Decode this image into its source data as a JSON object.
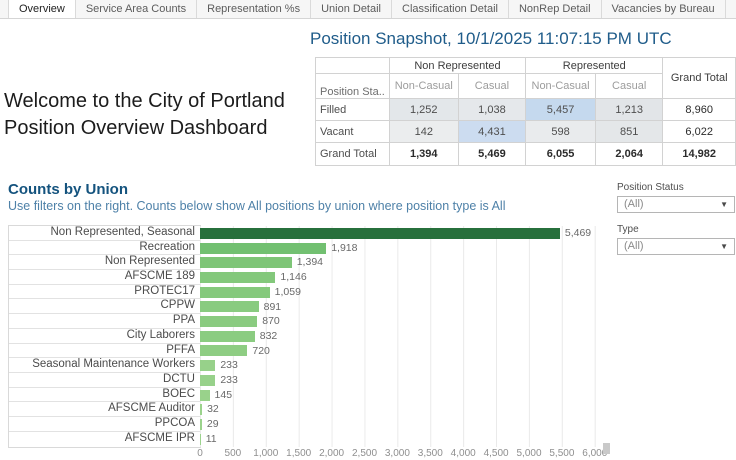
{
  "tabs": {
    "items": [
      {
        "label": "Overview",
        "active": true
      },
      {
        "label": "Service Area Counts",
        "active": false
      },
      {
        "label": "Representation %s",
        "active": false
      },
      {
        "label": "Union Detail",
        "active": false
      },
      {
        "label": "Classification Detail",
        "active": false
      },
      {
        "label": "NonRep Detail",
        "active": false
      },
      {
        "label": "Vacancies by Bureau",
        "active": false
      }
    ]
  },
  "welcome": {
    "line1": "Welcome to the City of Portland",
    "line2": "Position Overview Dashboard"
  },
  "snapshot": {
    "title": "Position Snapshot, 10/1/2025 11:07:15 PM UTC",
    "table": {
      "col_groups": [
        "Non Represented",
        "Represented"
      ],
      "sub_headers": [
        "Non-Casual",
        "Casual",
        "Non-Casual",
        "Casual"
      ],
      "row_field_label": "Position Sta..",
      "grand_total_label": "Grand Total",
      "rows": [
        {
          "label": "Filled",
          "bold": false,
          "cells": [
            {
              "v": "1,252",
              "bg": "#e3e7ea"
            },
            {
              "v": "1,038",
              "bg": "#e5e8eb"
            },
            {
              "v": "5,457",
              "bg": "#c5d9ee"
            },
            {
              "v": "1,213",
              "bg": "#e2e5e8"
            }
          ],
          "total": "8,960"
        },
        {
          "label": "Vacant",
          "bold": false,
          "cells": [
            {
              "v": "142",
              "bg": "#ebedee"
            },
            {
              "v": "4,431",
              "bg": "#ccdcf0"
            },
            {
              "v": "598",
              "bg": "#e9ebed"
            },
            {
              "v": "851",
              "bg": "#e4e7e9"
            }
          ],
          "total": "6,022"
        },
        {
          "label": "Grand Total",
          "bold": true,
          "cells": [
            {
              "v": "1,394",
              "bg": "#ffffff"
            },
            {
              "v": "5,469",
              "bg": "#ffffff"
            },
            {
              "v": "6,055",
              "bg": "#ffffff"
            },
            {
              "v": "2,064",
              "bg": "#ffffff"
            }
          ],
          "total": "14,982"
        }
      ]
    }
  },
  "counts_by_union": {
    "heading": "Counts by Union",
    "subtitle": "Use filters on the right. Counts below show All positions by union where position type is All"
  },
  "filters": [
    {
      "label": "Position Status",
      "value": "(All)",
      "caret": "▼"
    },
    {
      "label": "Type",
      "value": "(All)",
      "caret": "▼"
    }
  ],
  "chart_data": {
    "type": "bar",
    "orientation": "horizontal",
    "title": "Counts by Union",
    "xlabel": "",
    "ylabel": "",
    "xlim": [
      0,
      6076
    ],
    "grid": true,
    "categories": [
      "Non Represented, Seasonal",
      "Recreation",
      "Non Represented",
      "AFSCME 189",
      "PROTEC17",
      "CPPW",
      "PPA",
      "City Laborers",
      "PFFA",
      "Seasonal Maintenance Workers",
      "DCTU",
      "BOEC",
      "AFSCME Auditor",
      "PPCOA",
      "AFSCME IPR"
    ],
    "values": [
      5469,
      1918,
      1394,
      1146,
      1059,
      891,
      870,
      832,
      720,
      233,
      233,
      145,
      32,
      29,
      11
    ],
    "value_labels": [
      "5,469",
      "1,918",
      "1,394",
      "1,146",
      "1,059",
      "891",
      "870",
      "832",
      "720",
      "233",
      "233",
      "145",
      "32",
      "29",
      "11"
    ],
    "bar_colors": [
      "#27703c",
      "#72c071",
      "#7ec577",
      "#83c87b",
      "#85c97c",
      "#89cb80",
      "#8acb80",
      "#8bcc81",
      "#8ecd83",
      "#97d18a",
      "#97d18a",
      "#99d28b",
      "#9bd38c",
      "#9bd38c",
      "#9cd38d"
    ],
    "x_ticks": [
      0,
      500,
      1000,
      1500,
      2000,
      2500,
      3000,
      3500,
      4000,
      4500,
      5000,
      5500,
      6000
    ],
    "x_tick_labels": [
      "0",
      "500",
      "1,000",
      "1,500",
      "2,000",
      "2,500",
      "3,000",
      "3,500",
      "4,000",
      "4,500",
      "5,000",
      "5,500",
      "6,000"
    ]
  },
  "colors": {
    "title_blue": "#1f5c8a",
    "heading_blue": "#14537e",
    "subtitle_blue": "#4e81a8",
    "top_bar_green": "#27703c",
    "bar_green": "#8bcc81",
    "highlight_cell_blue": "#c5d9ee"
  }
}
